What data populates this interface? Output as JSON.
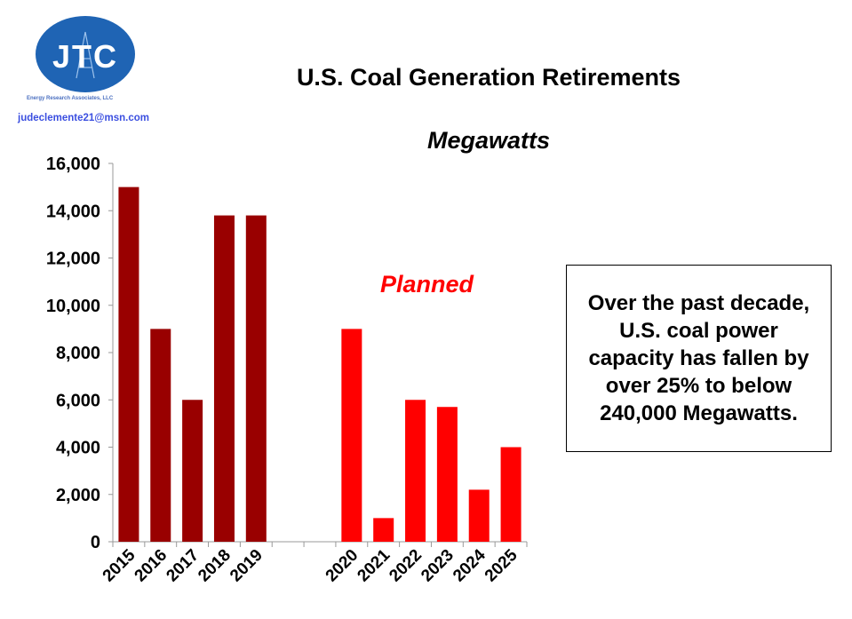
{
  "logo": {
    "text": "JTC",
    "subtitle": "Energy Research Associates, LLC",
    "email": "judeclemente21@msn.com"
  },
  "annotation": {
    "planned_label": "Planned",
    "note": "Over the past decade, U.S. coal power capacity has fallen by over 25% to below 240,000 Megawatts."
  },
  "chart_data": {
    "type": "bar",
    "title": "U.S. Coal Generation Retirements",
    "subtitle": "Megawatts",
    "categories": [
      "2015",
      "2016",
      "2017",
      "2018",
      "2019",
      "",
      "",
      "2020",
      "2021",
      "2022",
      "2023",
      "2024",
      "2025"
    ],
    "series": [
      {
        "values": [
          15000,
          9000,
          6000,
          13800,
          13800,
          null,
          null,
          9000,
          1000,
          6000,
          5700,
          2200,
          4000
        ]
      }
    ],
    "colors": {
      "historical": "#990000",
      "planned": "#ff0000"
    },
    "ylim": [
      0,
      16000
    ],
    "yticks": [
      "0",
      "2,000",
      "4,000",
      "6,000",
      "8,000",
      "10,000",
      "12,000",
      "14,000",
      "16,000"
    ],
    "grid": false
  }
}
